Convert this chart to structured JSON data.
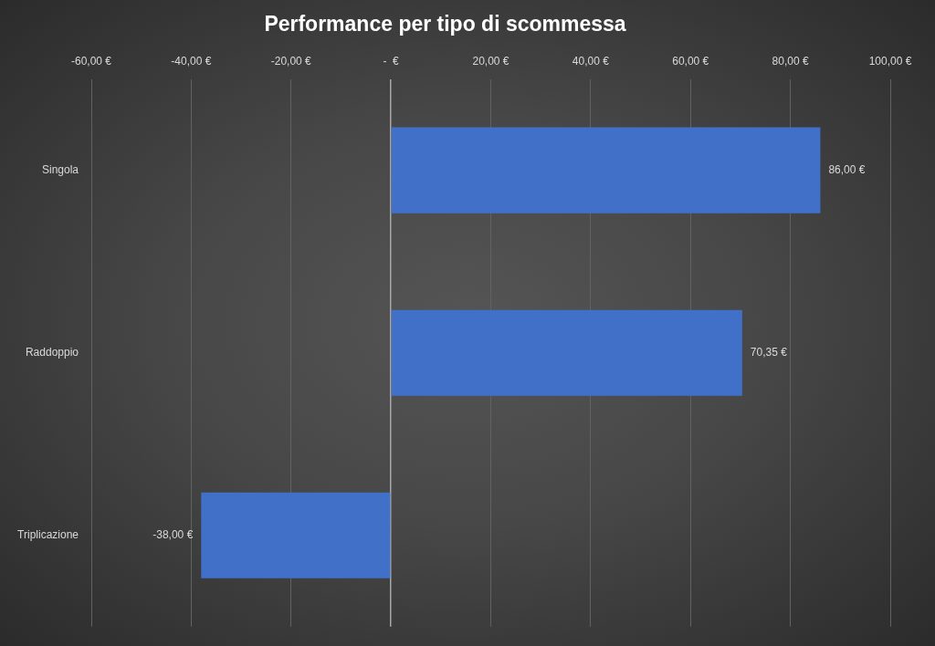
{
  "chart_data": {
    "type": "bar",
    "orientation": "horizontal",
    "title": "Performance per tipo di scommessa",
    "categories": [
      "Singola",
      "Raddoppio",
      "Triplicazione"
    ],
    "values": [
      86,
      70.35,
      -38
    ],
    "color": "#4170c9",
    "xlim": [
      -60,
      100
    ],
    "xticks": [
      {
        "value": -60,
        "label": "-60,00 €"
      },
      {
        "value": -40,
        "label": "-40,00 €"
      },
      {
        "value": -20,
        "label": "-20,00 €"
      },
      {
        "value": 0,
        "label": "-  €"
      },
      {
        "value": 20,
        "label": "20,00 €"
      },
      {
        "value": 40,
        "label": "40,00 €"
      },
      {
        "value": 60,
        "label": "60,00 €"
      },
      {
        "value": 80,
        "label": "80,00 €"
      },
      {
        "value": 100,
        "label": "100,00 €"
      }
    ],
    "grid": "x",
    "value_labels": [
      "86,00 €",
      "70,35 €",
      "-38,00 €"
    ]
  }
}
